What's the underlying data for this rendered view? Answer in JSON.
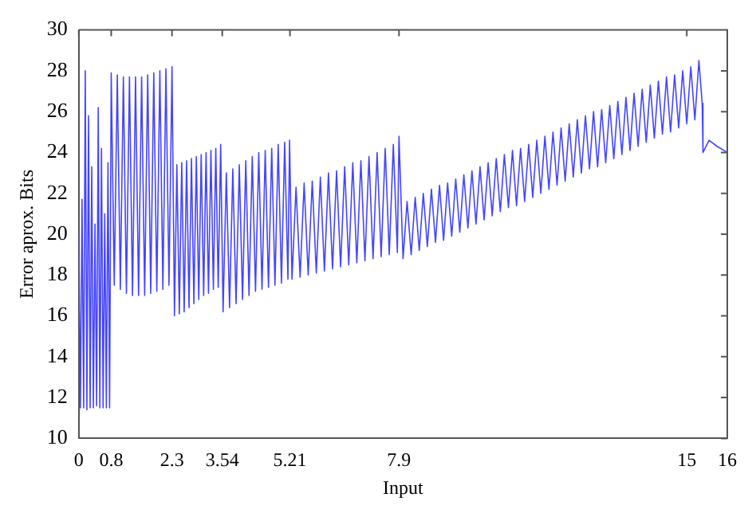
{
  "chart_data": {
    "type": "line",
    "xlabel": "Input",
    "ylabel": "Error aprox. Bits",
    "xlim": [
      0,
      16
    ],
    "xticks": [
      0,
      0.8,
      2.3,
      3.54,
      5.21,
      7.9,
      15,
      16
    ],
    "ylim": [
      10,
      30
    ],
    "yticks": [
      10,
      12,
      14,
      16,
      18,
      20,
      22,
      24,
      26,
      28,
      30
    ],
    "grid": false,
    "legend": false,
    "marker": "none",
    "line_style": "solid",
    "series": [
      {
        "color": "#4444ff",
        "x": [
          0,
          0.04,
          0.08,
          0.12,
          0.16,
          0.2,
          0.24,
          0.28,
          0.32,
          0.36,
          0.4,
          0.44,
          0.48,
          0.52,
          0.56,
          0.6,
          0.64,
          0.68,
          0.72,
          0.76,
          0.8,
          0.875,
          0.95,
          1.025,
          1.1,
          1.175,
          1.25,
          1.325,
          1.4,
          1.475,
          1.55,
          1.625,
          1.7,
          1.775,
          1.85,
          1.925,
          2.0,
          2.075,
          2.15,
          2.225,
          2.3,
          2.36,
          2.42,
          2.48,
          2.54,
          2.6,
          2.66,
          2.72,
          2.78,
          2.84,
          2.9,
          2.96,
          3.02,
          3.08,
          3.14,
          3.2,
          3.26,
          3.32,
          3.38,
          3.44,
          3.5,
          3.56,
          3.64,
          3.72,
          3.8,
          3.88,
          3.96,
          4.04,
          4.12,
          4.2,
          4.28,
          4.36,
          4.44,
          4.52,
          4.6,
          4.68,
          4.76,
          4.84,
          4.92,
          5.0,
          5.08,
          5.16,
          5.2,
          5.26,
          5.36,
          5.46,
          5.56,
          5.66,
          5.76,
          5.86,
          5.96,
          6.06,
          6.16,
          6.26,
          6.36,
          6.46,
          6.56,
          6.66,
          6.76,
          6.86,
          6.96,
          7.06,
          7.16,
          7.26,
          7.36,
          7.46,
          7.56,
          7.66,
          7.76,
          7.86,
          7.9,
          8.0,
          8.1,
          8.2,
          8.3,
          8.4,
          8.5,
          8.6,
          8.7,
          8.8,
          8.9,
          9.0,
          9.1,
          9.2,
          9.3,
          9.4,
          9.5,
          9.6,
          9.7,
          9.8,
          9.9,
          10.0,
          10.1,
          10.2,
          10.3,
          10.4,
          10.5,
          10.6,
          10.7,
          10.8,
          10.9,
          11.0,
          11.1,
          11.2,
          11.3,
          11.4,
          11.5,
          11.6,
          11.7,
          11.8,
          11.9,
          12.0,
          12.1,
          12.2,
          12.3,
          12.4,
          12.5,
          12.6,
          12.7,
          12.8,
          12.9,
          13.0,
          13.1,
          13.2,
          13.3,
          13.4,
          13.5,
          13.6,
          13.7,
          13.8,
          13.9,
          14.0,
          14.1,
          14.2,
          14.3,
          14.4,
          14.5,
          14.6,
          14.7,
          14.8,
          14.9,
          15.0,
          15.1,
          15.2,
          15.3,
          15.38,
          15.4,
          15.55,
          15.75,
          16
        ],
        "values": [
          20,
          11.5,
          21.7,
          11.5,
          28,
          11.4,
          25.8,
          11.5,
          23.3,
          11.5,
          20.5,
          11.6,
          26.2,
          11.5,
          24.2,
          11.5,
          21,
          11.5,
          23.5,
          11.5,
          27.9,
          17.5,
          27.8,
          17.3,
          27.7,
          17.1,
          27.7,
          17.0,
          27.7,
          17.0,
          27.7,
          17.0,
          27.8,
          17.1,
          27.9,
          17.2,
          28.0,
          17.3,
          28.1,
          17.5,
          28.2,
          16.0,
          23.4,
          16.1,
          23.5,
          16.2,
          23.6,
          16.4,
          23.7,
          16.6,
          23.8,
          16.8,
          23.9,
          17.0,
          24.0,
          17.1,
          24.1,
          17.3,
          24.2,
          17.4,
          24.4,
          16.2,
          23.0,
          16.4,
          23.2,
          16.6,
          23.4,
          16.8,
          23.6,
          17.0,
          23.8,
          17.2,
          24.0,
          17.3,
          24.1,
          17.4,
          24.2,
          17.5,
          24.4,
          17.6,
          24.5,
          17.8,
          24.6,
          17.8,
          22.3,
          17.9,
          22.5,
          18.0,
          22.6,
          18.1,
          22.8,
          18.2,
          23.0,
          18.3,
          23.1,
          18.4,
          23.3,
          18.5,
          23.5,
          18.6,
          23.6,
          18.7,
          23.8,
          18.8,
          24.0,
          18.9,
          24.2,
          19.0,
          24.4,
          19.1,
          24.8,
          18.8,
          21.6,
          19.0,
          21.8,
          19.2,
          22.0,
          19.4,
          22.2,
          19.6,
          22.4,
          19.7,
          22.5,
          19.9,
          22.7,
          20.1,
          22.9,
          20.3,
          23.1,
          20.5,
          23.3,
          20.7,
          23.5,
          20.9,
          23.7,
          21.1,
          23.9,
          21.3,
          24.1,
          21.4,
          24.2,
          21.6,
          24.4,
          21.8,
          24.6,
          22.0,
          24.8,
          22.2,
          25.0,
          22.4,
          25.2,
          22.6,
          25.4,
          22.8,
          25.6,
          23.0,
          25.8,
          23.2,
          26.0,
          23.3,
          26.1,
          23.5,
          26.3,
          23.7,
          26.5,
          23.9,
          26.7,
          24.1,
          26.9,
          24.3,
          27.1,
          24.5,
          27.3,
          24.7,
          27.5,
          24.9,
          27.7,
          25.0,
          27.8,
          25.2,
          28.0,
          25.4,
          28.2,
          25.6,
          28.5,
          26.4,
          24.0,
          24.6,
          24.3,
          24.0
        ]
      }
    ]
  }
}
